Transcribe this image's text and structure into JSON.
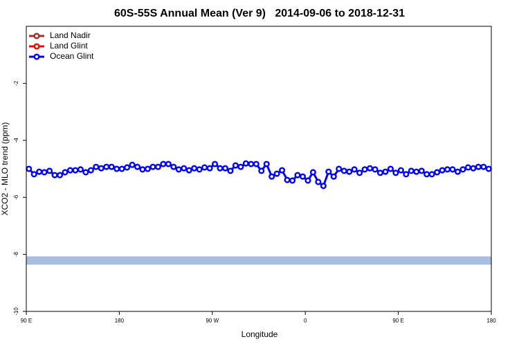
{
  "chart_data": {
    "type": "line",
    "title": "60S-55S Annual Mean (Ver 9)   2014-09-06 to 2018-12-31",
    "xlabel": "Longitude",
    "ylabel": "XCO2 - MLO trend (ppm)",
    "xlim": [
      90,
      540
    ],
    "ylim": [
      -10,
      0
    ],
    "xticks": [
      {
        "value": 90,
        "label": "90 E"
      },
      180,
      {
        "value": 270,
        "label": "90 W"
      },
      {
        "value": 360,
        "label": "0"
      },
      {
        "value": 450,
        "label": "90 E"
      },
      {
        "value": 540,
        "label": "180"
      }
    ],
    "yticks": [
      -10,
      -8,
      -6,
      -4,
      -2
    ],
    "legend_position": "upper left",
    "reference_band": {
      "color": "#a8bde0",
      "range": [
        -8.36,
        -8.07
      ]
    },
    "x": [
      92.5,
      97.5,
      102.5,
      107.5,
      112.5,
      117.5,
      122.5,
      127.5,
      132.5,
      137.5,
      142.5,
      147.5,
      152.5,
      157.5,
      162.5,
      167.5,
      172.5,
      177.5,
      182.5,
      187.5,
      192.5,
      197.5,
      202.5,
      207.5,
      212.5,
      217.5,
      222.5,
      227.5,
      232.5,
      237.5,
      242.5,
      247.5,
      252.5,
      257.5,
      262.5,
      267.5,
      272.5,
      277.5,
      282.5,
      287.5,
      292.5,
      297.5,
      302.5,
      307.5,
      312.5,
      317.5,
      322.5,
      327.5,
      332.5,
      337.5,
      342.5,
      347.5,
      352.5,
      357.5,
      362.5,
      367.5,
      372.5,
      377.5,
      382.5,
      387.5,
      392.5,
      397.5,
      402.5,
      407.5,
      412.5,
      417.5,
      422.5,
      427.5,
      432.5,
      437.5,
      442.5,
      447.5,
      452.5,
      457.5,
      462.5,
      467.5,
      472.5,
      477.5,
      482.5,
      487.5,
      492.5,
      497.5,
      502.5,
      507.5,
      512.5,
      517.5,
      522.5,
      527.5,
      532.5,
      537.5
    ],
    "series": [
      {
        "name": "Land Nadir",
        "color": "#a52a2a",
        "values": [
          null,
          null,
          null,
          null,
          null,
          null,
          null,
          null,
          null,
          null,
          null,
          null,
          null,
          null,
          null,
          null,
          null,
          null,
          null,
          null,
          null,
          null,
          null,
          null,
          null,
          null,
          null,
          null,
          null,
          null,
          null,
          null,
          null,
          null,
          null,
          null,
          null,
          null,
          null,
          null,
          null,
          null,
          null,
          null,
          null,
          null,
          null,
          null,
          null,
          null,
          null,
          null,
          null,
          null,
          null,
          null,
          null,
          null,
          null,
          null,
          null,
          null,
          null,
          null,
          null,
          null,
          null,
          null,
          null,
          null,
          null,
          null,
          null,
          null,
          null,
          null,
          null,
          null,
          null,
          null,
          null,
          null,
          null,
          null,
          null,
          null,
          null,
          null,
          null,
          null
        ]
      },
      {
        "name": "Land Glint",
        "color": "#ff0000",
        "values": [
          null,
          null,
          null,
          null,
          null,
          null,
          null,
          null,
          null,
          null,
          null,
          null,
          null,
          null,
          null,
          null,
          null,
          null,
          null,
          null,
          null,
          null,
          null,
          null,
          null,
          null,
          null,
          null,
          null,
          null,
          null,
          null,
          null,
          null,
          null,
          null,
          null,
          null,
          null,
          null,
          null,
          null,
          null,
          null,
          null,
          null,
          null,
          null,
          null,
          null,
          null,
          null,
          null,
          null,
          null,
          null,
          null,
          null,
          null,
          null,
          null,
          null,
          null,
          null,
          null,
          null,
          null,
          null,
          null,
          null,
          null,
          null,
          null,
          null,
          null,
          null,
          null,
          null,
          null,
          null,
          null,
          null,
          null,
          null,
          null,
          null,
          null,
          null,
          null,
          null
        ]
      },
      {
        "name": "Ocean Glint",
        "color": "#0000ff",
        "values": [
          -5.0,
          -5.19,
          -5.1,
          -5.12,
          -5.07,
          -5.22,
          -5.22,
          -5.12,
          -5.05,
          -5.05,
          -5.02,
          -5.12,
          -5.05,
          -4.93,
          -4.98,
          -4.93,
          -4.93,
          -5.0,
          -5.0,
          -4.95,
          -4.86,
          -4.93,
          -5.02,
          -5.0,
          -4.93,
          -4.93,
          -4.83,
          -4.83,
          -4.93,
          -5.02,
          -4.98,
          -5.05,
          -4.98,
          -5.02,
          -4.95,
          -4.98,
          -4.83,
          -4.98,
          -4.98,
          -5.07,
          -4.88,
          -4.93,
          -4.81,
          -4.83,
          -4.83,
          -5.07,
          -4.83,
          -5.27,
          -5.17,
          -5.05,
          -5.39,
          -5.41,
          -5.22,
          -5.27,
          -5.41,
          -5.12,
          -5.46,
          -5.6,
          -5.1,
          -5.27,
          -5.0,
          -5.07,
          -5.1,
          -5.02,
          -5.14,
          -5.02,
          -4.98,
          -5.02,
          -5.14,
          -5.1,
          -5.0,
          -5.14,
          -5.05,
          -5.19,
          -5.07,
          -5.1,
          -5.07,
          -5.19,
          -5.19,
          -5.12,
          -5.05,
          -5.02,
          -5.02,
          -5.1,
          -5.02,
          -4.95,
          -4.98,
          -4.93,
          -4.93,
          -5.0
        ]
      }
    ]
  }
}
